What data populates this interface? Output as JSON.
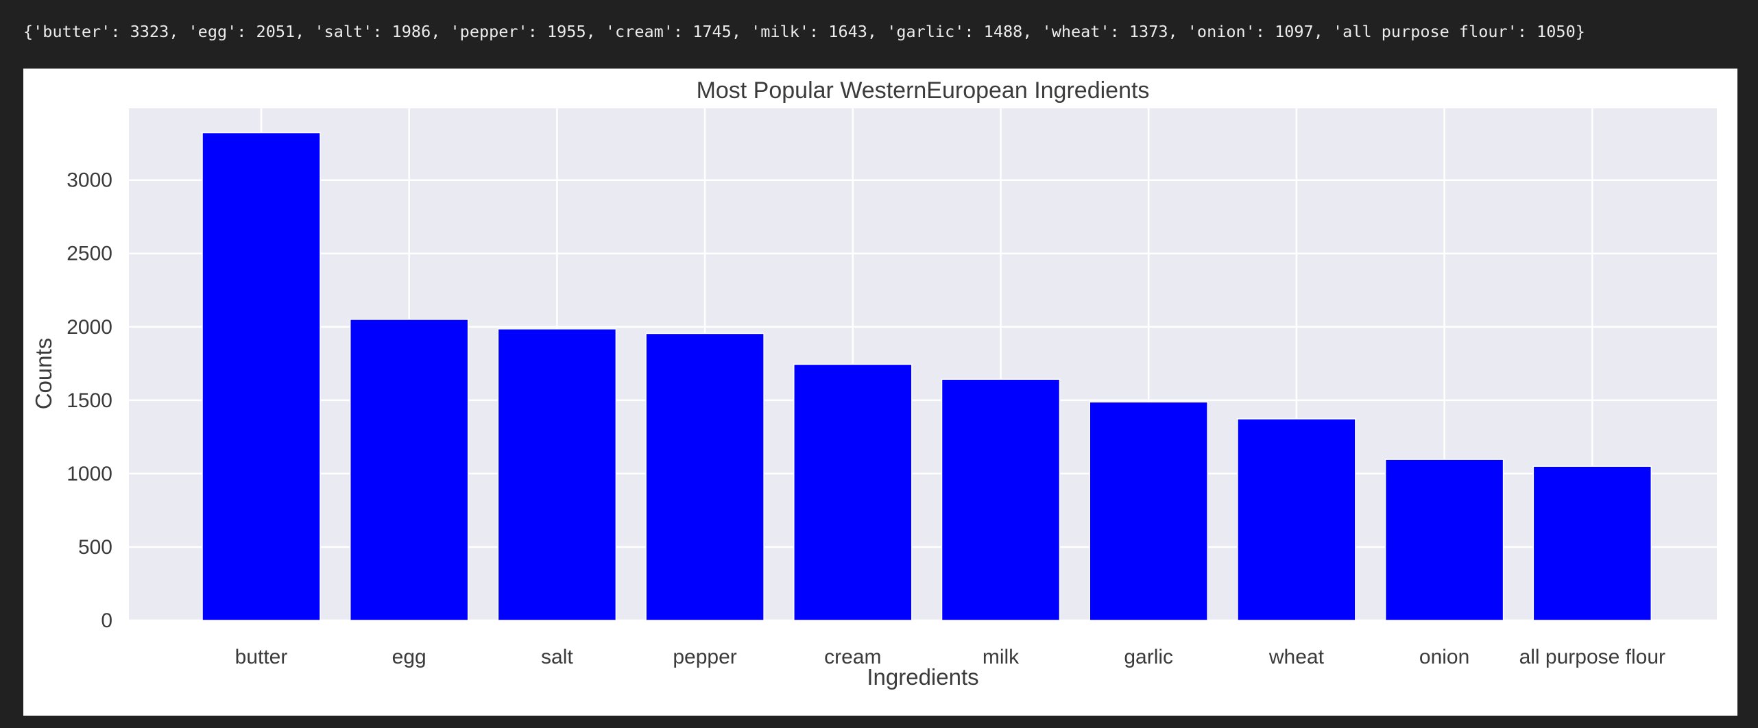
{
  "output_line": "{'butter': 3323, 'egg': 2051, 'salt': 1986, 'pepper': 1955, 'cream': 1745, 'milk': 1643, 'garlic': 1488, 'wheat': 1373, 'onion': 1097, 'all purpose flour': 1050}",
  "chart_data": {
    "type": "bar",
    "title": "Most Popular WesternEuropean Ingredients",
    "xlabel": "Ingredients",
    "ylabel": "Counts",
    "categories": [
      "butter",
      "egg",
      "salt",
      "pepper",
      "cream",
      "milk",
      "garlic",
      "wheat",
      "onion",
      "all purpose flour"
    ],
    "values": [
      3323,
      2051,
      1986,
      1955,
      1745,
      1643,
      1488,
      1373,
      1097,
      1050
    ],
    "ylim": [
      0,
      3489
    ],
    "yticks": [
      0,
      500,
      1000,
      1500,
      2000,
      2500,
      3000
    ],
    "grid": true,
    "colors": {
      "bar": "#0000ff",
      "plot_background": "#eaeaf2",
      "grid": "#ffffff"
    }
  }
}
